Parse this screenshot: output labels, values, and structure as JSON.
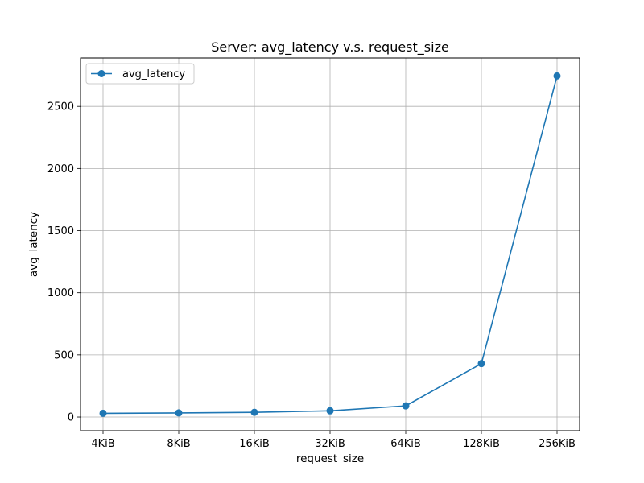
{
  "chart_data": {
    "type": "line",
    "title": "Server: avg_latency v.s. request_size",
    "xlabel": "request_size",
    "ylabel": "avg_latency",
    "categories": [
      "4KiB",
      "8KiB",
      "16KiB",
      "32KiB",
      "64KiB",
      "128KiB",
      "256KiB"
    ],
    "series": [
      {
        "name": "avg_latency",
        "values": [
          30,
          33,
          38,
          50,
          90,
          430,
          2745
        ],
        "color": "#1f77b4",
        "marker": "circle"
      }
    ],
    "ylim": [
      -110,
      2890
    ],
    "yticks": [
      0,
      500,
      1000,
      1500,
      2000,
      2500
    ],
    "grid": true,
    "legend_position": "top-left"
  }
}
